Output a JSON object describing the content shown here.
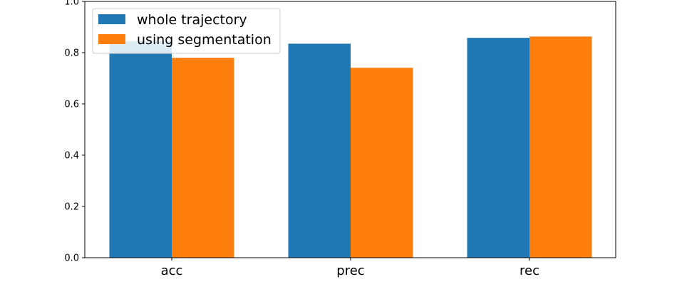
{
  "chart_data": {
    "type": "bar",
    "categories": [
      "acc",
      "prec",
      "rec"
    ],
    "series": [
      {
        "name": "whole trajectory",
        "values": [
          0.845,
          0.835,
          0.858
        ],
        "color": "#1f77b4"
      },
      {
        "name": "using segmentation",
        "values": [
          0.78,
          0.741,
          0.863
        ],
        "color": "#ff7f0e"
      }
    ],
    "ylim": [
      0.0,
      1.0
    ],
    "yticks": [
      "0.0",
      "0.2",
      "0.4",
      "0.6",
      "0.8",
      "1.0"
    ],
    "grid": false,
    "legend_position": "top-left"
  }
}
